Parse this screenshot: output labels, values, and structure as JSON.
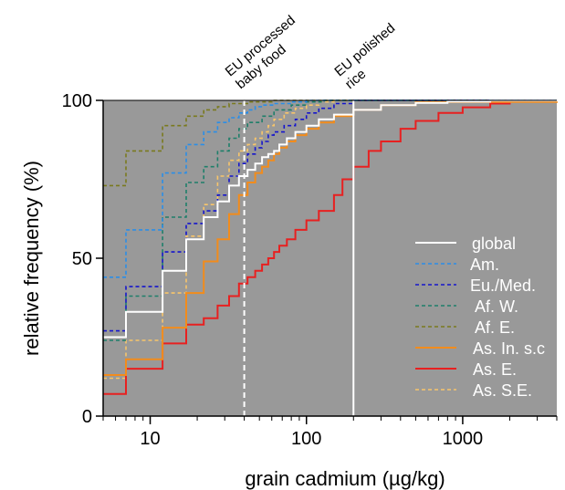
{
  "chart_data": {
    "type": "line",
    "step": true,
    "xlabel": "grain cadmium (µg/kg)",
    "ylabel": "relative frequency (%)",
    "xscale": "log",
    "xlim": [
      5,
      4000
    ],
    "ylim": [
      0,
      100
    ],
    "x_ticks": [
      10,
      100,
      1000
    ],
    "x_tick_labels": [
      "10",
      "100",
      "1000"
    ],
    "y_ticks": [
      0,
      50,
      100
    ],
    "y_tick_labels": [
      "0",
      "50",
      "100"
    ],
    "plot_background": "#999999",
    "grid": false,
    "legend_position": "center-right",
    "reference_lines": [
      {
        "x": 40,
        "style": "dashed",
        "color": "#ffffff",
        "label_lines": [
          "EU processed",
          "baby food"
        ]
      },
      {
        "x": 200,
        "style": "solid",
        "color": "#ffffff",
        "label_lines": [
          "EU polished",
          "rice"
        ]
      }
    ],
    "series": [
      {
        "name": "global",
        "color": "#ffffff",
        "dash": "solid",
        "x": [
          5,
          7,
          12,
          17,
          22,
          27,
          32,
          37,
          42,
          47,
          52,
          57,
          62,
          67,
          75,
          85,
          100,
          120,
          150,
          200,
          300,
          500,
          800,
          1500,
          4000
        ],
        "y": [
          25,
          33,
          46,
          56,
          63,
          68,
          73,
          76,
          78,
          80,
          82,
          83,
          84,
          86,
          88,
          90,
          92,
          94,
          95.5,
          97,
          98.5,
          99.2,
          99.6,
          99.9,
          100
        ]
      },
      {
        "name": "Am.",
        "color": "#2a8ee8",
        "dash": "dashed",
        "x": [
          5,
          7,
          12,
          17,
          22,
          27,
          32,
          37,
          42,
          47,
          52,
          62,
          80,
          100,
          4000
        ],
        "y": [
          44,
          59,
          77,
          86,
          90,
          93,
          94.5,
          96,
          97,
          98,
          98.5,
          99,
          99.5,
          100,
          100
        ]
      },
      {
        "name": "Eu./Med.",
        "color": "#1515cc",
        "dash": "dashed",
        "x": [
          5,
          7,
          12,
          17,
          22,
          27,
          32,
          37,
          42,
          47,
          52,
          57,
          62,
          72,
          85,
          100,
          120,
          150,
          200,
          4000
        ],
        "y": [
          27,
          41,
          52,
          61,
          65,
          70,
          76,
          80,
          83,
          85,
          87,
          89,
          90,
          92,
          94,
          96,
          97.5,
          99,
          100,
          100
        ]
      },
      {
        "name": "Af. W.",
        "color": "#1f7f6a",
        "dash": "dashed",
        "x": [
          5,
          7,
          12,
          17,
          22,
          27,
          32,
          37,
          42,
          52,
          62,
          80,
          100,
          130,
          4000
        ],
        "y": [
          24,
          38,
          63,
          74,
          79,
          84,
          88,
          91,
          93,
          95,
          97,
          98.5,
          99.5,
          100,
          100
        ]
      },
      {
        "name": "Af. E.",
        "color": "#7a7a1e",
        "dash": "dashed",
        "x": [
          5,
          7,
          12,
          17,
          22,
          27,
          32,
          42,
          60,
          80,
          4000
        ],
        "y": [
          73,
          84,
          92,
          95,
          97,
          98,
          99,
          99.5,
          100,
          100,
          100
        ]
      },
      {
        "name": "As. In. s.c",
        "color": "#f28c1c",
        "dash": "solid",
        "x": [
          5,
          7,
          12,
          17,
          22,
          27,
          32,
          37,
          42,
          47,
          52,
          57,
          62,
          67,
          75,
          85,
          100,
          120,
          150,
          200,
          300,
          500,
          4000
        ],
        "y": [
          13,
          18,
          28,
          39,
          49,
          56,
          64,
          70,
          74,
          77,
          79,
          81,
          83,
          85,
          87,
          89,
          91,
          93,
          95,
          97,
          98.5,
          99.5,
          100
        ]
      },
      {
        "name": "As. E.",
        "color": "#e82020",
        "dash": "solid",
        "x": [
          5,
          7,
          12,
          17,
          22,
          27,
          32,
          37,
          42,
          47,
          52,
          57,
          62,
          67,
          75,
          85,
          100,
          120,
          150,
          170,
          200,
          250,
          300,
          400,
          500,
          700,
          1000,
          1500,
          2000,
          4000
        ],
        "y": [
          7,
          15,
          23,
          29,
          31,
          35,
          38,
          42,
          44,
          46,
          48,
          50,
          52,
          54,
          56,
          59,
          62,
          65,
          70,
          75,
          79,
          84,
          87,
          91,
          93.5,
          96,
          97.8,
          99,
          99.6,
          100
        ]
      },
      {
        "name": "As. S.E.",
        "color": "#f7c56b",
        "dash": "dashed",
        "x": [
          5,
          7,
          12,
          17,
          22,
          27,
          32,
          37,
          42,
          47,
          52,
          57,
          62,
          72,
          85,
          100,
          120,
          150,
          4000
        ],
        "y": [
          12,
          24,
          39,
          57,
          67,
          76,
          81,
          84,
          86,
          88,
          90,
          92,
          94,
          96,
          97.5,
          98.5,
          99.5,
          100,
          100
        ]
      }
    ]
  }
}
